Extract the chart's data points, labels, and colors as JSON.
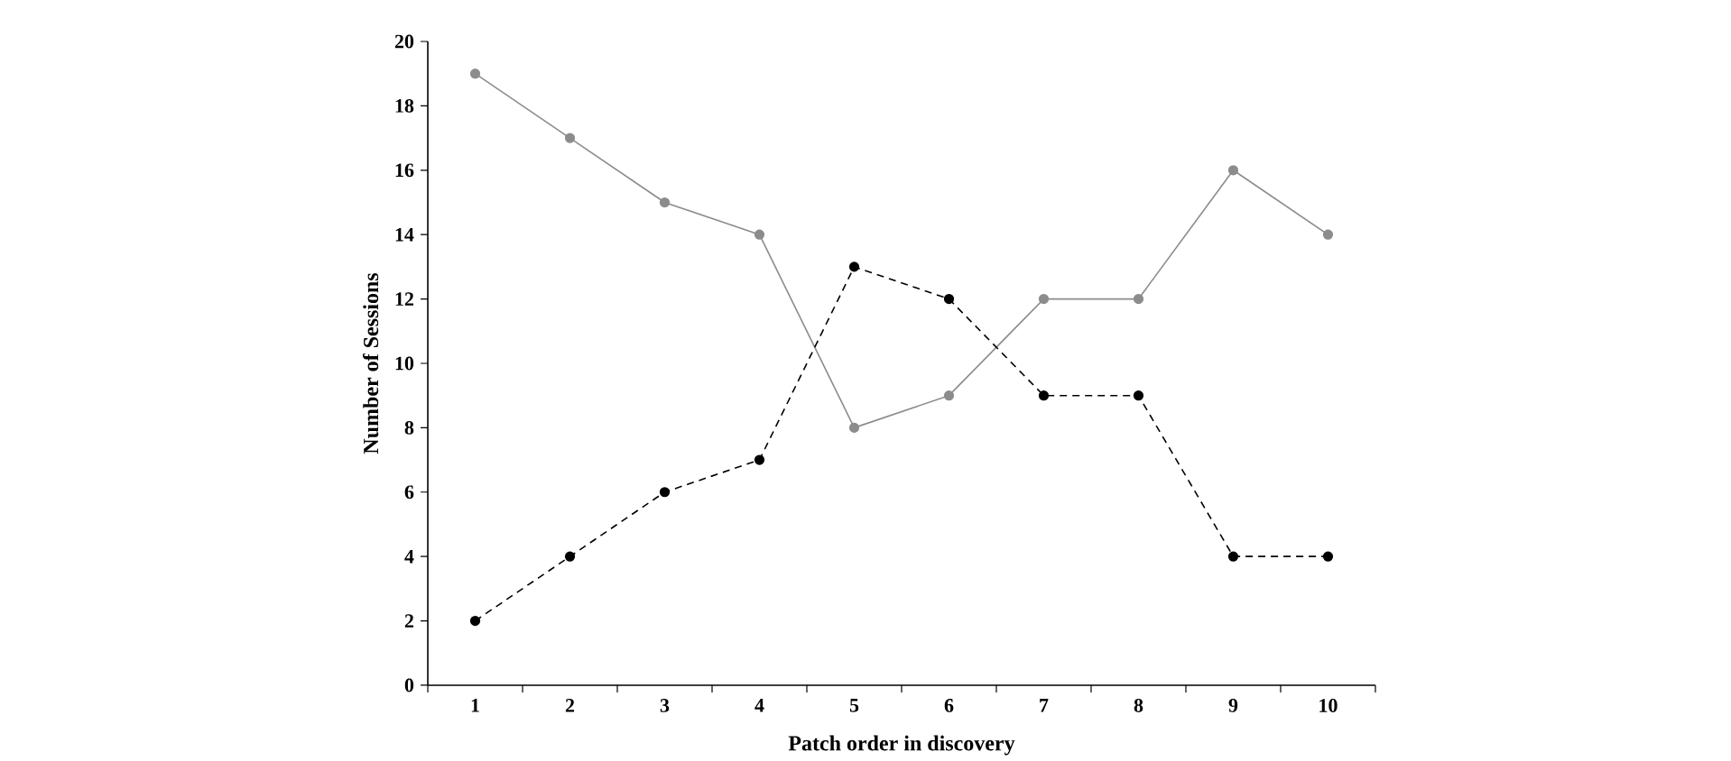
{
  "chart_data": {
    "type": "line",
    "xlabel": "Patch order in discovery",
    "ylabel": "Number of Sessions",
    "categories": [
      "1",
      "2",
      "3",
      "4",
      "5",
      "6",
      "7",
      "8",
      "9",
      "10"
    ],
    "series": [
      {
        "color": "#8c8c8c",
        "line_style": "solid",
        "values": [
          19,
          17,
          15,
          14,
          8,
          9,
          12,
          12,
          16,
          14
        ]
      },
      {
        "color": "#000000",
        "line_style": "dashed",
        "values": [
          2,
          4,
          6,
          7,
          13,
          12,
          9,
          9,
          4,
          4
        ]
      }
    ],
    "ylim": [
      0,
      20
    ],
    "yticks": [
      0,
      2,
      4,
      6,
      8,
      10,
      12,
      14,
      16,
      18,
      20
    ],
    "marker": "circle",
    "grid": false
  }
}
